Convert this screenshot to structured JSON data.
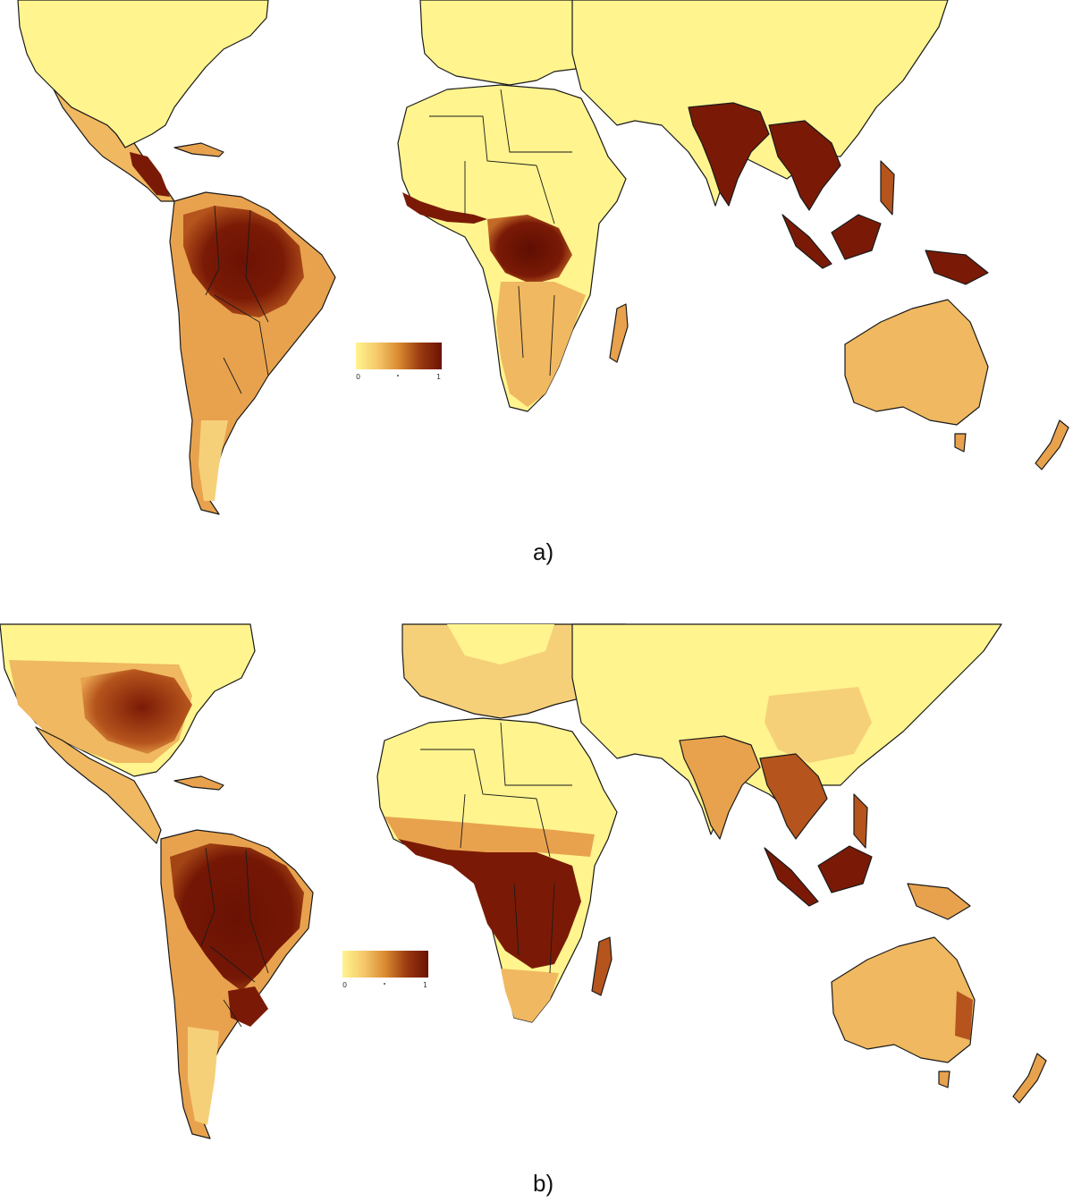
{
  "figure": {
    "panels": [
      {
        "id": "a",
        "label": "a)",
        "legend": {
          "min_label": "0",
          "max_label": "1",
          "gradient": [
            "#fff48e",
            "#f5c86a",
            "#d98a30",
            "#9a3a10",
            "#6b1204"
          ]
        }
      },
      {
        "id": "b",
        "label": "b)",
        "legend": {
          "min_label": "0",
          "max_label": "1",
          "gradient": [
            "#fff48e",
            "#f5c86a",
            "#d98a30",
            "#9a3a10",
            "#6b1204"
          ]
        }
      }
    ],
    "colors": {
      "low": "#fff48e",
      "low_mid": "#f6d079",
      "mid": "#e8a24e",
      "high": "#b5541c",
      "very_high": "#7a1a06",
      "border": "#1a1a1a",
      "background": "#ffffff"
    }
  }
}
